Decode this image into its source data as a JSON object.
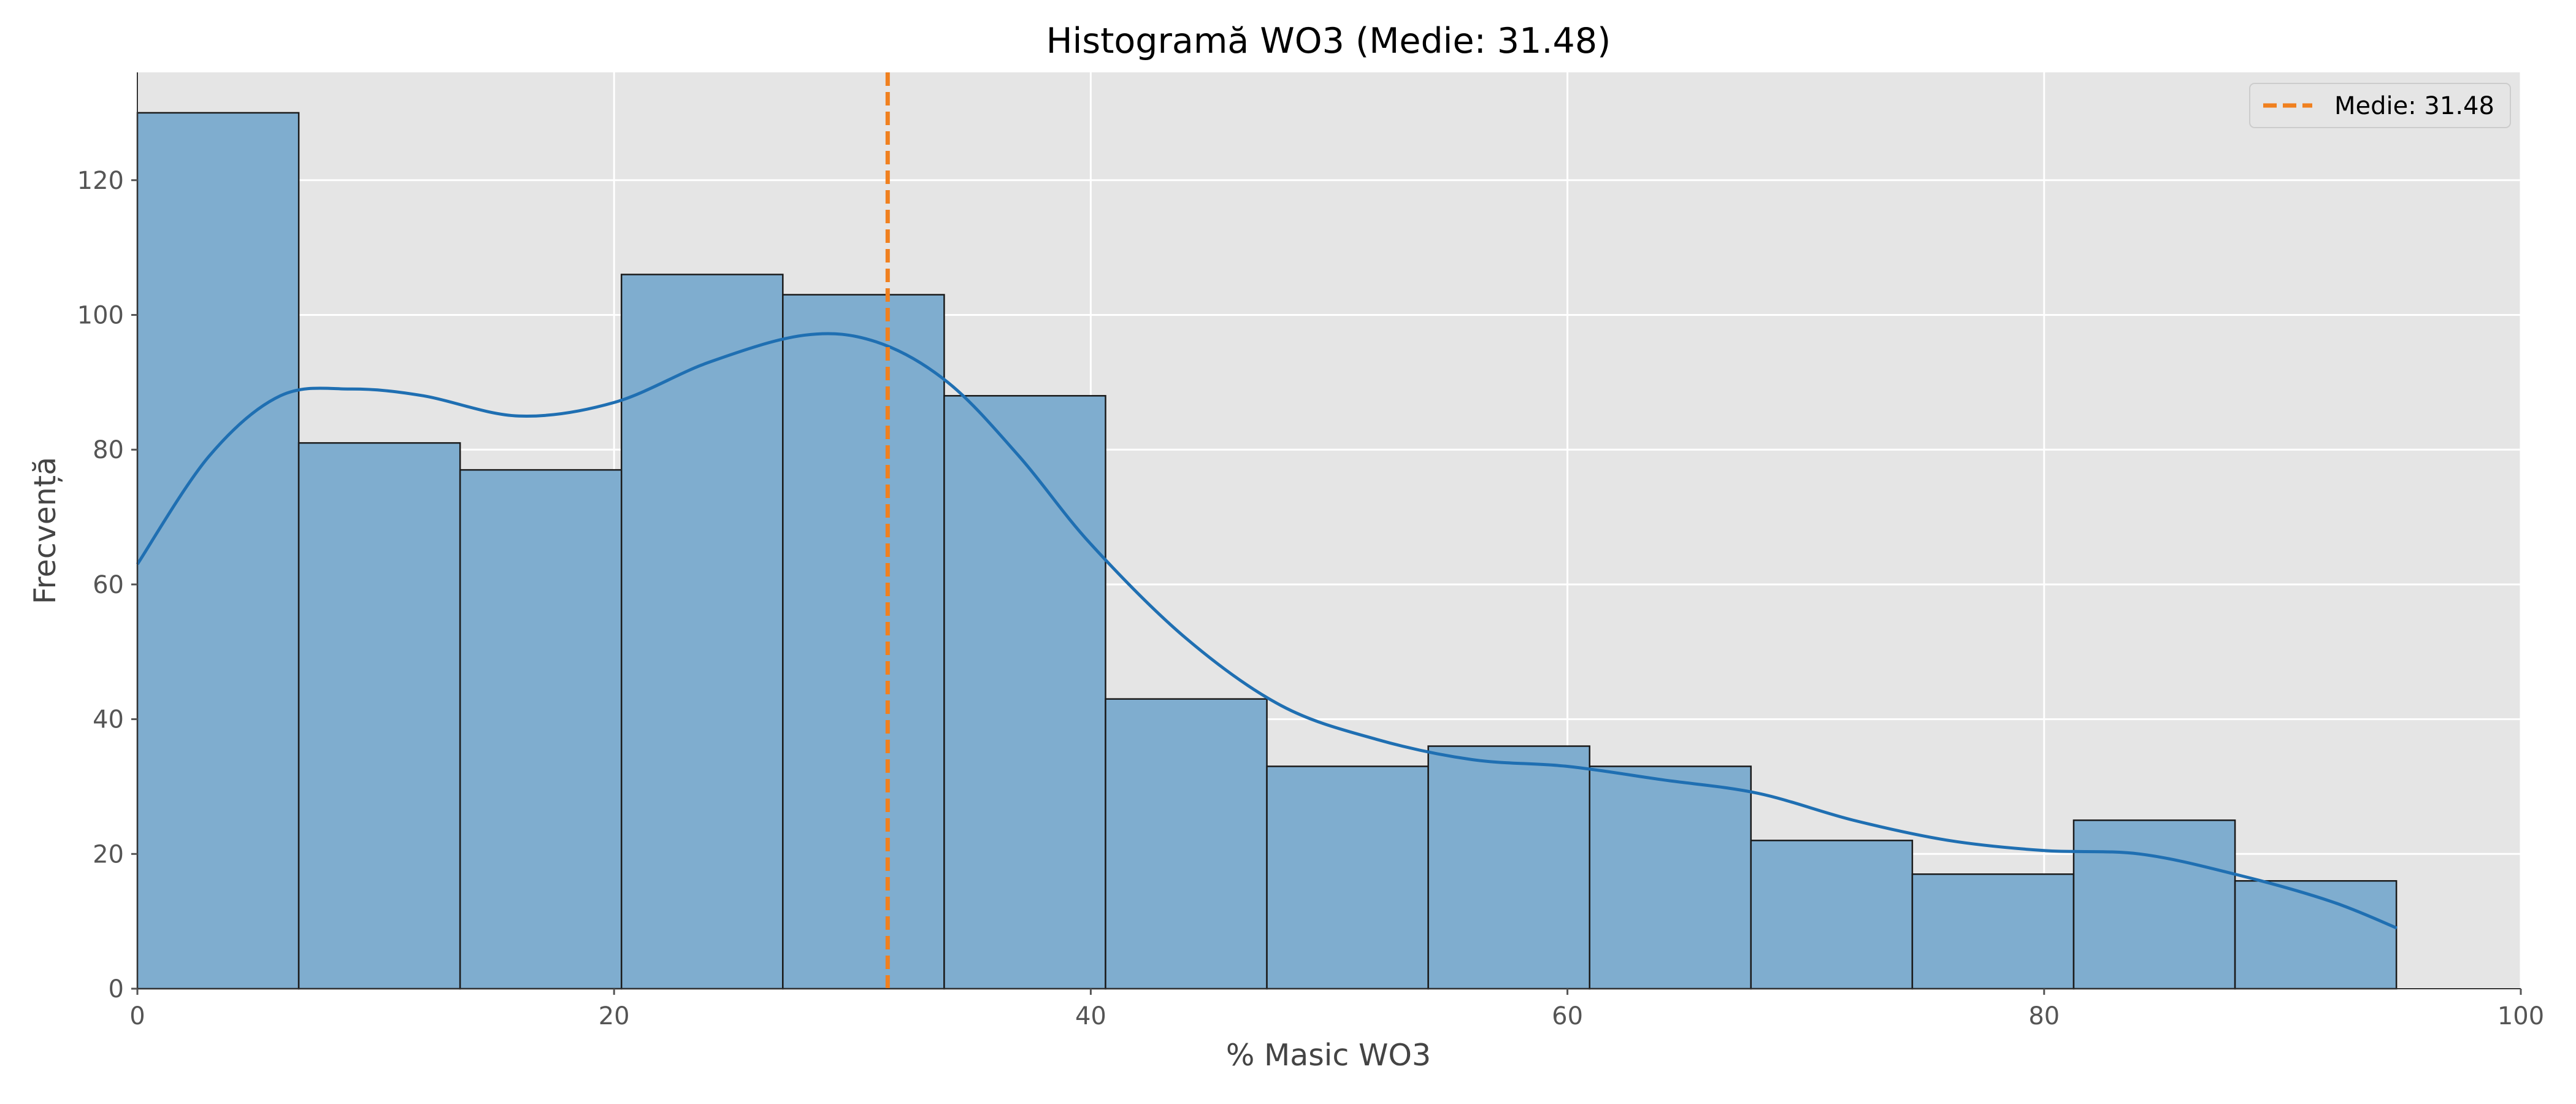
{
  "chart_data": {
    "type": "bar",
    "subtype": "histogram",
    "title": "Histogramă WO3 (Medie: 31.48)",
    "xlabel": "% Masic WO3",
    "ylabel": "Frecvență",
    "xlim": [
      0,
      100
    ],
    "ylim": [
      0,
      136
    ],
    "xticks": [
      0,
      20,
      40,
      60,
      80,
      100
    ],
    "yticks": [
      0,
      20,
      40,
      60,
      80,
      100,
      120
    ],
    "bin_edges": [
      0,
      6.77,
      13.54,
      20.31,
      27.08,
      33.85,
      40.62,
      47.39,
      54.16,
      60.93,
      67.7,
      74.47,
      81.24,
      88.01,
      94.78
    ],
    "counts": [
      130,
      81,
      77,
      106,
      103,
      88,
      43,
      33,
      36,
      33,
      22,
      17,
      25,
      16
    ],
    "kde": {
      "x": [
        0,
        3,
        6,
        9,
        12,
        16,
        20,
        24,
        28,
        31,
        34,
        37,
        40,
        44,
        48,
        52,
        56,
        60,
        64,
        68,
        72,
        76,
        80,
        84,
        88,
        92,
        94.8
      ],
      "y": [
        63,
        79,
        88,
        89,
        88,
        85,
        87,
        93,
        97,
        96,
        90,
        79,
        66,
        52,
        42,
        37,
        34,
        33,
        31,
        29,
        25,
        22,
        20.5,
        20,
        17,
        13,
        9
      ]
    },
    "mean_line": {
      "value": 31.48,
      "label": "Medie: 31.48",
      "style": "dashed"
    },
    "legend_position": "top-right",
    "grid": true,
    "colors": {
      "bar_fill": "#7fadcf",
      "bar_edge": "#1a1a1a",
      "kde": "#1f6fb2",
      "mean_line": "#f0801f",
      "plot_background": "#e5e5e5",
      "grid": "#ffffff"
    }
  }
}
